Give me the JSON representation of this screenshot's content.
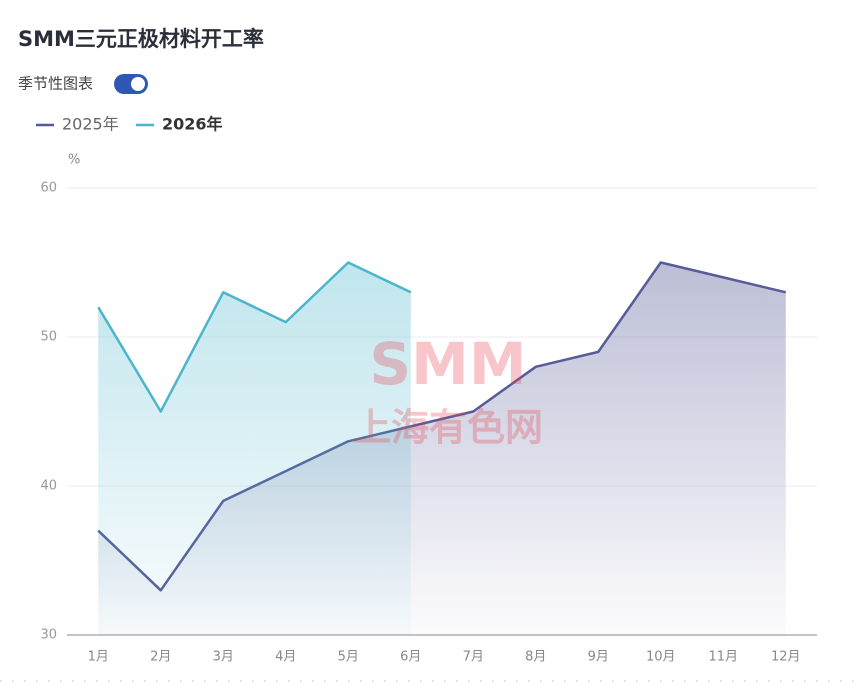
{
  "title": "SMM三元正极材料开工率",
  "toggle_label": "季节性图表",
  "watermark": {
    "top": "SMM",
    "bottom": "上海有色网"
  },
  "chart_data": {
    "type": "line",
    "area": true,
    "y_label": "%",
    "categories": [
      "1月",
      "2月",
      "3月",
      "4月",
      "5月",
      "6月",
      "7月",
      "8月",
      "9月",
      "10月",
      "11月",
      "12月"
    ],
    "series": [
      {
        "name": "2025年",
        "color": "#575c98",
        "values": [
          37,
          33,
          39,
          41,
          43,
          44,
          45,
          48,
          49,
          55,
          54,
          53
        ]
      },
      {
        "name": "2026年",
        "color": "#4bb6cb",
        "values": [
          52,
          45,
          53,
          51,
          55,
          53,
          null,
          null,
          null,
          null,
          null,
          null
        ]
      }
    ],
    "ylim": [
      30,
      60
    ],
    "yticks": [
      30,
      40,
      50,
      60
    ],
    "grid": true
  }
}
